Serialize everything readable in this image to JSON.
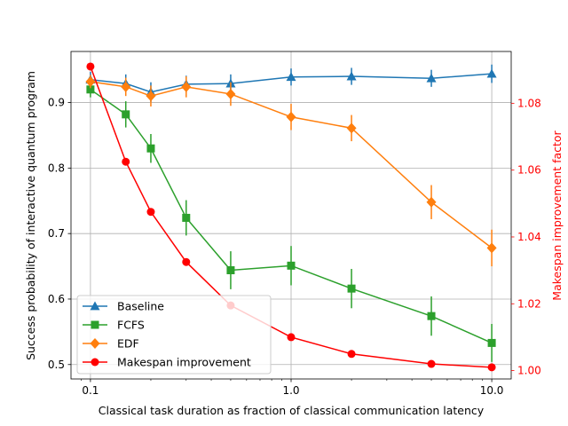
{
  "chart_data": {
    "type": "line",
    "xscale": "log",
    "xlabel": "Classical task duration as fraction of classical communication latency",
    "ylabel": "Success probability of interactive quantum program",
    "ylabel_right": "Makespan improvement factor",
    "xlim": [
      0.08,
      12.5
    ],
    "ylim": [
      0.478,
      0.978
    ],
    "ylim_right": [
      0.9975,
      1.0955
    ],
    "x_ticks": [
      0.1,
      1.0,
      10.0
    ],
    "x_tick_labels": [
      "0.1",
      "1.0",
      "10.0"
    ],
    "y_ticks": [
      0.5,
      0.6,
      0.7,
      0.8,
      0.9
    ],
    "y_tick_labels": [
      "0.5",
      "0.6",
      "0.7",
      "0.8",
      "0.9"
    ],
    "y_ticks_right": [
      1.0,
      1.02,
      1.04,
      1.06,
      1.08
    ],
    "y_tick_labels_right": [
      "1.00",
      "1.02",
      "1.04",
      "1.06",
      "1.08"
    ],
    "grid": true,
    "legend_position": "lower-left",
    "x": [
      0.1,
      0.15,
      0.2,
      0.3,
      0.5,
      1.0,
      2.0,
      5.0,
      10.0
    ],
    "series": [
      {
        "name": "Baseline",
        "axis": "left",
        "marker": "triangle",
        "color": "#1f77b4",
        "values": [
          0.935,
          0.929,
          0.916,
          0.928,
          0.929,
          0.939,
          0.94,
          0.937,
          0.944
        ],
        "errors": [
          0.012,
          0.014,
          0.015,
          0.013,
          0.014,
          0.013,
          0.013,
          0.013,
          0.014
        ]
      },
      {
        "name": "FCFS",
        "axis": "left",
        "marker": "square",
        "color": "#2ca02c",
        "values": [
          0.92,
          0.882,
          0.83,
          0.724,
          0.644,
          0.651,
          0.616,
          0.574,
          0.533
        ],
        "errors": [
          0.012,
          0.02,
          0.022,
          0.027,
          0.029,
          0.03,
          0.03,
          0.03,
          0.029
        ]
      },
      {
        "name": "EDF",
        "axis": "left",
        "marker": "diamond",
        "color": "#ff7f0e",
        "values": [
          0.932,
          0.924,
          0.91,
          0.924,
          0.913,
          0.878,
          0.861,
          0.748,
          0.678
        ],
        "errors": [
          0.01,
          0.014,
          0.016,
          0.016,
          0.018,
          0.02,
          0.02,
          0.026,
          0.028
        ]
      },
      {
        "name": "Makespan improvement",
        "axis": "right",
        "marker": "circle",
        "color": "#ff0000",
        "values": [
          1.091,
          1.0625,
          1.0475,
          1.0325,
          1.0195,
          1.01,
          1.005,
          1.002,
          1.001
        ]
      }
    ]
  }
}
